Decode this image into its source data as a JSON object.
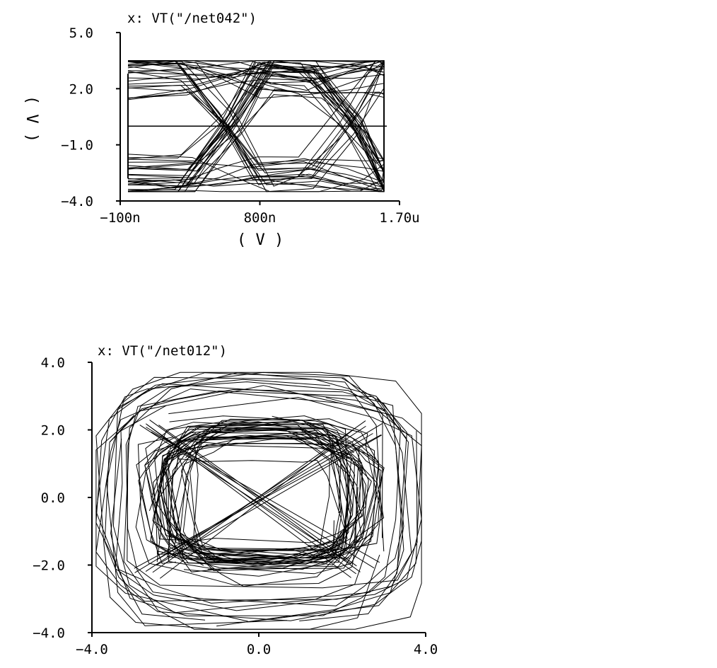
{
  "chart_data": [
    {
      "type": "line",
      "title": "x: VT(\"/net042\")",
      "xlabel": "( V )",
      "ylabel": "( V )",
      "xlim": [
        -1e-07,
        1.7e-06
      ],
      "ylim": [
        -4.0,
        5.0
      ],
      "x_tick_labels": [
        "−100n",
        "800n",
        "1.70u"
      ],
      "x_tick_values": [
        -1e-07,
        8e-07,
        1.7e-06
      ],
      "y_tick_labels": [
        "5.0",
        "2.0",
        "−1.0",
        "−4.0"
      ],
      "y_tick_values": [
        5.0,
        2.0,
        -1.0,
        -4.0
      ],
      "grid": false,
      "line_color": "#000000",
      "reference_line": {
        "y": 0.0
      },
      "eye_diagram": {
        "x_start": -5e-08,
        "x_end": 1.6e-06,
        "crossings": [
          6e-07,
          1.4e-06
        ],
        "high_level": 2.0,
        "low_level": -2.0,
        "overshoot_max": 3.5,
        "undershoot_min": -3.5,
        "trace_count": 60
      }
    },
    {
      "type": "line",
      "title": "x: VT(\"/net012\")",
      "xlabel": "",
      "ylabel": "",
      "xlim": [
        -4.0,
        4.0
      ],
      "ylim": [
        -4.0,
        4.0
      ],
      "x_tick_labels": [
        "−4.0",
        "0.0",
        "4.0"
      ],
      "x_tick_values": [
        -4.0,
        0.0,
        4.0
      ],
      "y_tick_labels": [
        "4.0",
        "2.0",
        "0.0",
        "−2.0",
        "−4.0"
      ],
      "y_tick_values": [
        4.0,
        2.0,
        0.0,
        -2.0,
        -4.0
      ],
      "grid": false,
      "line_color": "#000000",
      "xy_plot": {
        "core_x_range": [
          -2.5,
          2.5
        ],
        "core_y_range": [
          -2.0,
          2.0
        ],
        "outer_x_range": [
          -3.9,
          3.9
        ],
        "outer_y_range": [
          -3.8,
          3.7
        ],
        "loop_count": 48
      }
    }
  ]
}
